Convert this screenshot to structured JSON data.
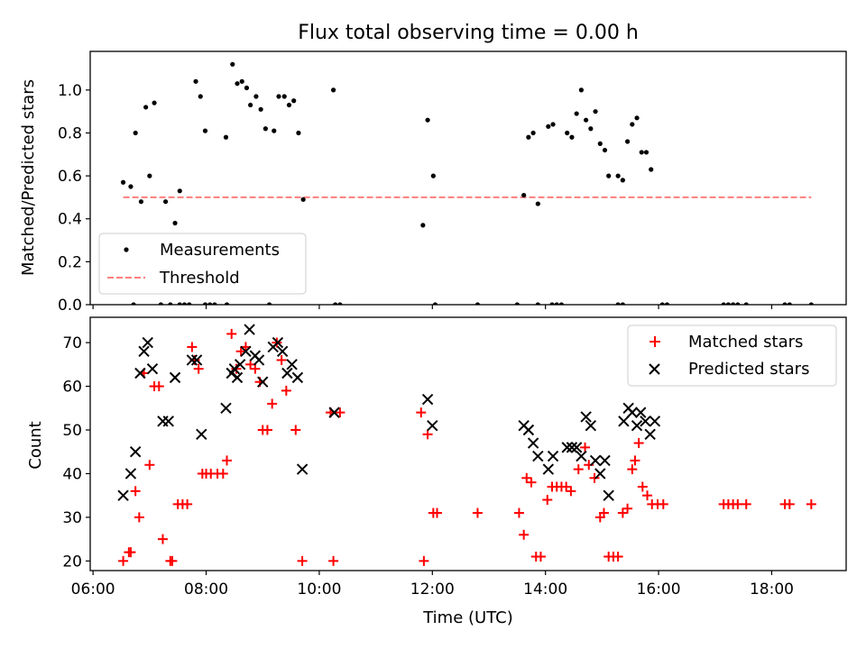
{
  "title": "Flux total observing time = 0.00 h",
  "chart_data": [
    {
      "type": "scatter",
      "ylabel": "Matched/Predicted stars",
      "xlim": [
        "05:57",
        "19:19"
      ],
      "ylim": [
        0,
        1.18
      ],
      "yticks": [
        "0.0",
        "0.2",
        "0.4",
        "0.6",
        "0.8",
        "1.0"
      ],
      "legend_position": "lower-left",
      "series": [
        {
          "name": "Measurements",
          "marker": "dot",
          "color": "#000000",
          "points": [
            [
              "06:32",
              0.57
            ],
            [
              "06:40",
              0.55
            ],
            [
              "06:45",
              0.8
            ],
            [
              "06:51",
              0.48
            ],
            [
              "06:56",
              0.92
            ],
            [
              "07:00",
              0.6
            ],
            [
              "07:05",
              0.94
            ],
            [
              "07:17",
              0.48
            ],
            [
              "07:27",
              0.38
            ],
            [
              "07:32",
              0.53
            ],
            [
              "07:49",
              1.04
            ],
            [
              "07:54",
              0.97
            ],
            [
              "07:59",
              0.81
            ],
            [
              "08:21",
              0.78
            ],
            [
              "08:28",
              1.12
            ],
            [
              "08:33",
              1.03
            ],
            [
              "08:38",
              1.04
            ],
            [
              "08:43",
              1.01
            ],
            [
              "08:47",
              0.93
            ],
            [
              "08:53",
              0.97
            ],
            [
              "08:58",
              0.91
            ],
            [
              "09:03",
              0.82
            ],
            [
              "09:12",
              0.81
            ],
            [
              "09:17",
              0.97
            ],
            [
              "09:23",
              0.97
            ],
            [
              "09:28",
              0.93
            ],
            [
              "09:33",
              0.95
            ],
            [
              "09:38",
              0.8
            ],
            [
              "09:43",
              0.49
            ],
            [
              "10:15",
              1.0
            ],
            [
              "11:50",
              0.37
            ],
            [
              "11:55",
              0.86
            ],
            [
              "12:01",
              0.6
            ],
            [
              "13:37",
              0.51
            ],
            [
              "13:42",
              0.78
            ],
            [
              "13:47",
              0.8
            ],
            [
              "13:52",
              0.47
            ],
            [
              "14:03",
              0.83
            ],
            [
              "14:08",
              0.84
            ],
            [
              "14:23",
              0.8
            ],
            [
              "14:28",
              0.78
            ],
            [
              "14:33",
              0.89
            ],
            [
              "14:38",
              1.0
            ],
            [
              "14:43",
              0.86
            ],
            [
              "14:48",
              0.82
            ],
            [
              "14:53",
              0.9
            ],
            [
              "14:58",
              0.75
            ],
            [
              "15:03",
              0.72
            ],
            [
              "15:07",
              0.6
            ],
            [
              "15:17",
              0.6
            ],
            [
              "15:22",
              0.58
            ],
            [
              "15:27",
              0.76
            ],
            [
              "15:32",
              0.84
            ],
            [
              "15:37",
              0.87
            ],
            [
              "15:42",
              0.71
            ],
            [
              "15:47",
              0.71
            ],
            [
              "15:52",
              0.63
            ],
            [
              "06:43",
              0
            ],
            [
              "07:12",
              0
            ],
            [
              "07:22",
              0
            ],
            [
              "07:32",
              0
            ],
            [
              "07:37",
              0
            ],
            [
              "07:42",
              0
            ],
            [
              "07:59",
              0
            ],
            [
              "08:04",
              0
            ],
            [
              "08:09",
              0
            ],
            [
              "08:22",
              0
            ],
            [
              "09:07",
              0
            ],
            [
              "10:17",
              0
            ],
            [
              "10:22",
              0
            ],
            [
              "12:03",
              0
            ],
            [
              "12:48",
              0
            ],
            [
              "13:30",
              0
            ],
            [
              "13:52",
              0
            ],
            [
              "14:07",
              0
            ],
            [
              "14:12",
              0
            ],
            [
              "14:17",
              0
            ],
            [
              "15:17",
              0
            ],
            [
              "15:22",
              0
            ],
            [
              "16:04",
              0
            ],
            [
              "16:09",
              0
            ],
            [
              "17:09",
              0
            ],
            [
              "17:14",
              0
            ],
            [
              "17:19",
              0
            ],
            [
              "17:24",
              0
            ],
            [
              "17:33",
              0
            ],
            [
              "18:14",
              0
            ],
            [
              "18:19",
              0
            ],
            [
              "18:42",
              0
            ]
          ]
        },
        {
          "name": "Threshold",
          "style": "dashed-line",
          "color": "#ff7f7f",
          "points": [
            [
              "06:32",
              0.5
            ],
            [
              "18:42",
              0.5
            ]
          ]
        }
      ]
    },
    {
      "type": "scatter",
      "xlabel": "Time (UTC)",
      "ylabel": "Count",
      "xlim": [
        "05:57",
        "19:19"
      ],
      "ylim": [
        17.8,
        75.8
      ],
      "yticks": [
        "20",
        "30",
        "40",
        "50",
        "60",
        "70"
      ],
      "xticks": [
        "06:00",
        "08:00",
        "10:00",
        "12:00",
        "14:00",
        "16:00",
        "18:00"
      ],
      "legend_position": "upper-right",
      "series": [
        {
          "name": "Matched stars",
          "marker": "plus",
          "color": "#ff0000",
          "points": [
            [
              "06:32",
              20
            ],
            [
              "06:38",
              22
            ],
            [
              "06:40",
              22
            ],
            [
              "06:45",
              36
            ],
            [
              "06:49",
              30
            ],
            [
              "06:54",
              63
            ],
            [
              "07:00",
              42
            ],
            [
              "07:05",
              60
            ],
            [
              "07:10",
              60
            ],
            [
              "07:14",
              25
            ],
            [
              "07:22",
              20
            ],
            [
              "07:24",
              20
            ],
            [
              "07:30",
              33
            ],
            [
              "07:35",
              33
            ],
            [
              "07:40",
              33
            ],
            [
              "07:45",
              69
            ],
            [
              "07:48",
              66
            ],
            [
              "07:52",
              64
            ],
            [
              "07:56",
              40
            ],
            [
              "08:00",
              40
            ],
            [
              "08:05",
              40
            ],
            [
              "08:12",
              40
            ],
            [
              "08:18",
              40
            ],
            [
              "08:22",
              43
            ],
            [
              "08:27",
              72
            ],
            [
              "08:32",
              64
            ],
            [
              "08:37",
              68
            ],
            [
              "08:42",
              69
            ],
            [
              "08:47",
              65
            ],
            [
              "08:52",
              64
            ],
            [
              "08:57",
              61
            ],
            [
              "09:00",
              50
            ],
            [
              "09:05",
              50
            ],
            [
              "09:10",
              56
            ],
            [
              "09:15",
              70
            ],
            [
              "09:20",
              66
            ],
            [
              "09:25",
              59
            ],
            [
              "09:35",
              50
            ],
            [
              "09:42",
              20
            ],
            [
              "10:12",
              54
            ],
            [
              "10:15",
              20
            ],
            [
              "10:22",
              54
            ],
            [
              "11:48",
              54
            ],
            [
              "11:51",
              20
            ],
            [
              "11:55",
              49
            ],
            [
              "12:01",
              31
            ],
            [
              "12:05",
              31
            ],
            [
              "12:48",
              31
            ],
            [
              "13:32",
              31
            ],
            [
              "13:37",
              26
            ],
            [
              "13:40",
              39
            ],
            [
              "13:45",
              38
            ],
            [
              "13:50",
              21
            ],
            [
              "13:55",
              21
            ],
            [
              "14:02",
              34
            ],
            [
              "14:07",
              37
            ],
            [
              "14:12",
              37
            ],
            [
              "14:17",
              37
            ],
            [
              "14:22",
              37
            ],
            [
              "14:27",
              36
            ],
            [
              "14:35",
              41
            ],
            [
              "14:42",
              46
            ],
            [
              "14:46",
              42
            ],
            [
              "14:52",
              39
            ],
            [
              "14:58",
              30
            ],
            [
              "15:02",
              31
            ],
            [
              "15:07",
              21
            ],
            [
              "15:12",
              21
            ],
            [
              "15:17",
              21
            ],
            [
              "15:22",
              31
            ],
            [
              "15:27",
              32
            ],
            [
              "15:32",
              41
            ],
            [
              "15:35",
              43
            ],
            [
              "15:39",
              47
            ],
            [
              "15:43",
              37
            ],
            [
              "15:48",
              35
            ],
            [
              "15:53",
              33
            ],
            [
              "15:59",
              33
            ],
            [
              "16:05",
              33
            ],
            [
              "17:09",
              33
            ],
            [
              "17:14",
              33
            ],
            [
              "17:19",
              33
            ],
            [
              "17:24",
              33
            ],
            [
              "17:33",
              33
            ],
            [
              "18:14",
              33
            ],
            [
              "18:19",
              33
            ],
            [
              "18:42",
              33
            ]
          ]
        },
        {
          "name": "Predicted stars",
          "marker": "x",
          "color": "#000000",
          "points": [
            [
              "06:32",
              35
            ],
            [
              "06:40",
              40
            ],
            [
              "06:45",
              45
            ],
            [
              "06:50",
              63
            ],
            [
              "06:54",
              68
            ],
            [
              "06:58",
              70
            ],
            [
              "07:03",
              64
            ],
            [
              "07:14",
              52
            ],
            [
              "07:20",
              52
            ],
            [
              "07:27",
              62
            ],
            [
              "07:45",
              66
            ],
            [
              "07:50",
              66
            ],
            [
              "07:55",
              49
            ],
            [
              "08:21",
              55
            ],
            [
              "08:27",
              63
            ],
            [
              "08:30",
              64
            ],
            [
              "08:33",
              62
            ],
            [
              "08:36",
              65
            ],
            [
              "08:42",
              68
            ],
            [
              "08:46",
              73
            ],
            [
              "08:52",
              67
            ],
            [
              "08:56",
              66
            ],
            [
              "09:00",
              61
            ],
            [
              "09:11",
              69
            ],
            [
              "09:16",
              70
            ],
            [
              "09:21",
              68
            ],
            [
              "09:26",
              63
            ],
            [
              "09:31",
              65
            ],
            [
              "09:37",
              62
            ],
            [
              "09:42",
              41
            ],
            [
              "10:16",
              54
            ],
            [
              "11:55",
              57
            ],
            [
              "12:00",
              51
            ],
            [
              "13:37",
              51
            ],
            [
              "13:42",
              50
            ],
            [
              "13:47",
              47
            ],
            [
              "13:52",
              44
            ],
            [
              "14:03",
              41
            ],
            [
              "14:08",
              44
            ],
            [
              "14:23",
              46
            ],
            [
              "14:28",
              46
            ],
            [
              "14:33",
              46
            ],
            [
              "14:38",
              44
            ],
            [
              "14:43",
              53
            ],
            [
              "14:48",
              51
            ],
            [
              "14:53",
              43
            ],
            [
              "14:58",
              40
            ],
            [
              "15:03",
              43
            ],
            [
              "15:07",
              35
            ],
            [
              "15:23",
              52
            ],
            [
              "15:28",
              55
            ],
            [
              "15:32",
              54
            ],
            [
              "15:37",
              51
            ],
            [
              "15:41",
              54
            ],
            [
              "15:46",
              52
            ],
            [
              "15:51",
              49
            ],
            [
              "15:56",
              52
            ]
          ]
        }
      ]
    }
  ]
}
